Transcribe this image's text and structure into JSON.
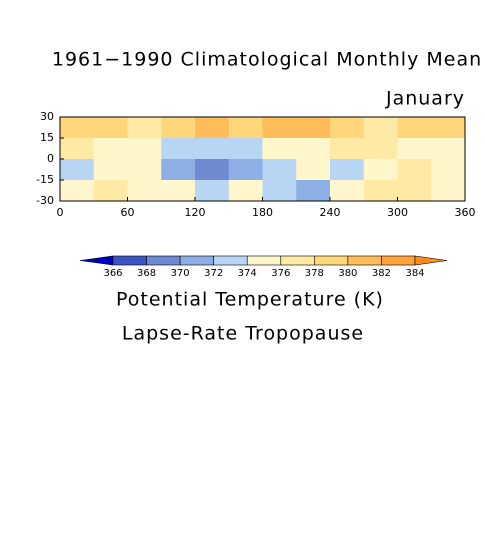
{
  "chart_data": {
    "type": "contour",
    "title": "1961−1990 Climatological Monthly Mean",
    "subtitle": "January",
    "xlim": [
      0,
      360
    ],
    "ylim": [
      -30,
      30
    ],
    "xticks": [
      0,
      60,
      120,
      180,
      240,
      300,
      360
    ],
    "yticks": [
      30,
      15,
      0,
      -15,
      -30
    ],
    "grid": {
      "lon": [
        15,
        45,
        75,
        105,
        135,
        165,
        195,
        225,
        255,
        285,
        315,
        345
      ],
      "lat": [
        22.5,
        7.5,
        -7.5,
        -22.5
      ],
      "values": [
        [
          379,
          378,
          377,
          378,
          380,
          379,
          381,
          380,
          378,
          377,
          378,
          379
        ],
        [
          376,
          374,
          375,
          373,
          372,
          373,
          374,
          375,
          376,
          376,
          375,
          374
        ],
        [
          373,
          374,
          374,
          371,
          369,
          370,
          373,
          374,
          373,
          375,
          376,
          374
        ],
        [
          375,
          376,
          375,
          374,
          372,
          374,
          372,
          371,
          374,
          376,
          376,
          375
        ]
      ]
    },
    "levels": [
      366,
      368,
      370,
      372,
      374,
      376,
      378,
      380,
      382,
      384
    ],
    "colors": [
      "#0000c0",
      "#3c55c4",
      "#6f8ad2",
      "#8eaee6",
      "#b8d6f4",
      "#fff6cc",
      "#ffe9a4",
      "#ffd679",
      "#ffbd5a",
      "#ffa43c",
      "#ff8a1e"
    ],
    "colorbar_label": "Potential Temperature (K)",
    "footer_label": "Lapse-Rate Tropopause"
  }
}
